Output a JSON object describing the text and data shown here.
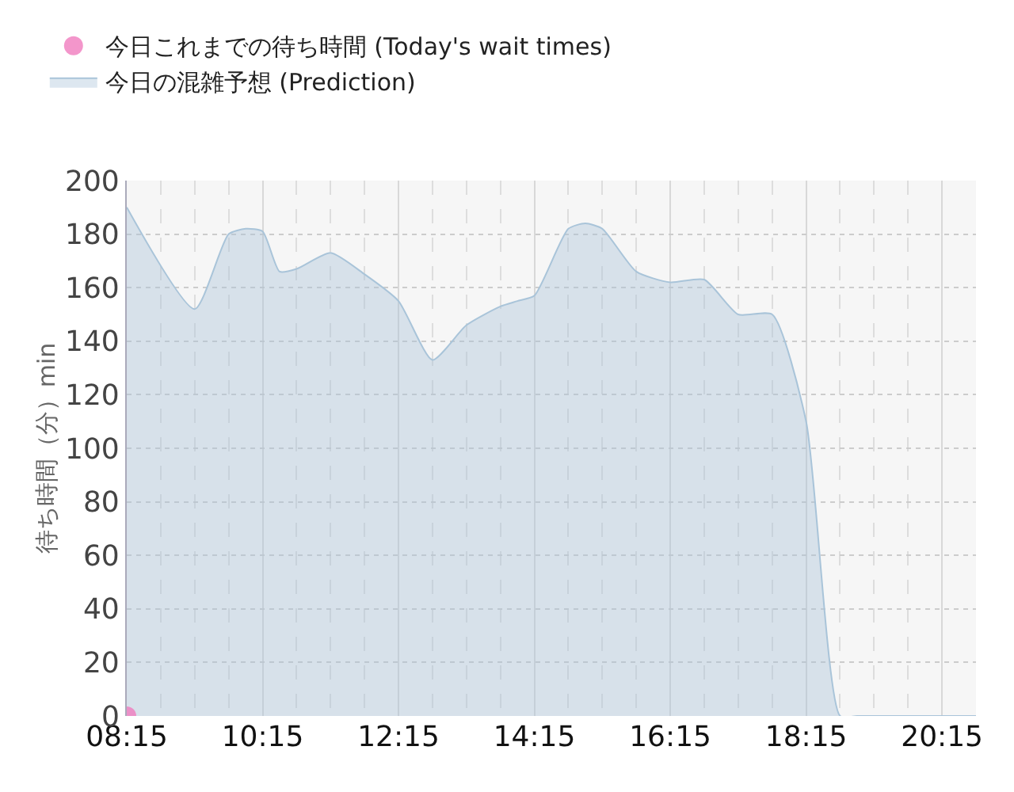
{
  "chart_data": {
    "type": "area",
    "ylabel": "待ち時間（分）min",
    "xlim": [
      8.25,
      20.75
    ],
    "xticks": [
      {
        "value": 8.25,
        "label": "08:15"
      },
      {
        "value": 10.25,
        "label": "10:15"
      },
      {
        "value": 12.25,
        "label": "12:15"
      },
      {
        "value": 14.25,
        "label": "14:15"
      },
      {
        "value": 16.25,
        "label": "16:15"
      },
      {
        "value": 18.25,
        "label": "18:15"
      },
      {
        "value": 20.25,
        "label": "20:15"
      }
    ],
    "ylim": [
      0,
      200
    ],
    "yticks": [
      0,
      20,
      40,
      60,
      80,
      100,
      120,
      140,
      160,
      180,
      200
    ],
    "grid": true,
    "legend": "top left",
    "series": [
      {
        "name": "今日これまでの待ち時間 (Today's wait times)",
        "type": "scatter",
        "marker": "circle",
        "color": "#f07cbe",
        "x": [
          8.25
        ],
        "values": [
          0
        ]
      },
      {
        "name": "今日の混雑予想 (Prediction)",
        "color": "#a9c4d9",
        "x": [
          8.25,
          9.25,
          9.75,
          10.0,
          10.25,
          10.5,
          10.75,
          11.25,
          11.75,
          12.25,
          12.75,
          13.25,
          13.75,
          14.0,
          14.25,
          14.75,
          15.0,
          15.25,
          15.75,
          16.25,
          16.75,
          17.25,
          17.75,
          18.25,
          18.75,
          19.0,
          19.5,
          20.0,
          20.5,
          20.75
        ],
        "values": [
          190,
          152,
          180,
          182,
          181,
          166,
          167,
          173,
          165,
          155,
          133,
          146,
          153,
          155,
          157,
          182,
          184,
          182,
          166,
          162,
          163,
          150,
          150,
          110,
          0,
          0,
          0,
          0,
          0,
          0
        ]
      }
    ]
  }
}
